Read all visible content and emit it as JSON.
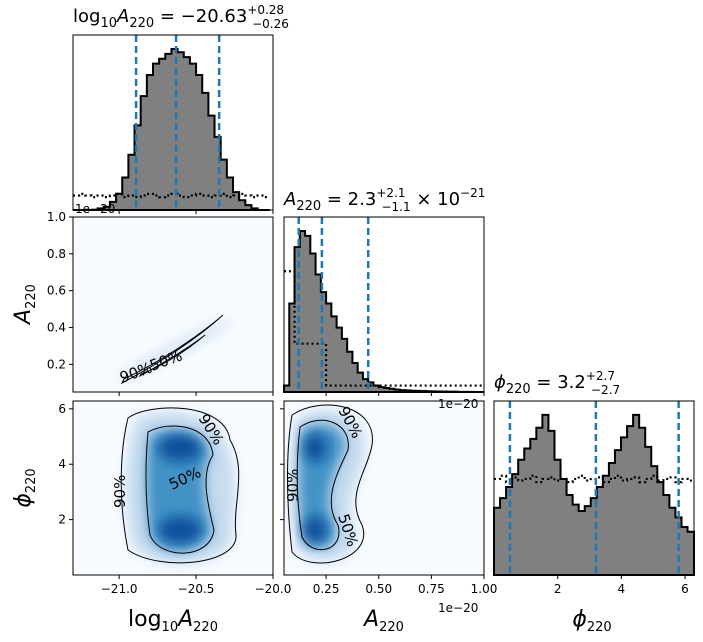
{
  "chart_data": {
    "type": "corner",
    "parameters": [
      {
        "id": "logA",
        "title": {
          "main": "log",
          "sub1": "10",
          "italic": "A",
          "sub2": "220",
          "eq": " = −20.63",
          "plus": "+0.28",
          "minus": "−0.26"
        },
        "axis_label": {
          "main": "log",
          "sub1": "10",
          "italic": "A",
          "sub2": "220"
        },
        "range": [
          -21.3,
          -20.0
        ],
        "ticks": [
          -21.0,
          -20.5,
          -20.0
        ],
        "tick_labels": [
          "−21.0",
          "−20.5",
          "−20.0"
        ],
        "quantiles": [
          -20.89,
          -20.63,
          -20.35
        ],
        "hist_bins": [
          -21.3,
          -21.26,
          -21.22,
          -21.18,
          -21.14,
          -21.1,
          -21.06,
          -21.02,
          -20.98,
          -20.94,
          -20.9,
          -20.86,
          -20.82,
          -20.78,
          -20.74,
          -20.7,
          -20.66,
          -20.62,
          -20.58,
          -20.54,
          -20.5,
          -20.46,
          -20.42,
          -20.38,
          -20.34,
          -20.3,
          -20.26,
          -20.22,
          -20.18,
          -20.14,
          -20.1,
          -20.06,
          -20.02
        ],
        "hist_values": [
          0.0,
          0.0,
          0.0,
          0.0,
          0.01,
          0.02,
          0.05,
          0.1,
          0.2,
          0.34,
          0.52,
          0.7,
          0.83,
          0.9,
          0.93,
          0.96,
          0.99,
          0.97,
          0.94,
          0.9,
          0.83,
          0.72,
          0.58,
          0.45,
          0.31,
          0.2,
          0.11,
          0.06,
          0.03,
          0.01,
          0.0,
          0.0
        ],
        "prior_values": [
          0.09,
          0.1,
          0.09,
          0.08,
          0.09,
          0.08,
          0.09,
          0.1,
          0.08,
          0.09,
          0.08,
          0.09,
          0.1,
          0.09,
          0.08,
          0.09,
          0.1,
          0.09,
          0.08,
          0.09,
          0.1,
          0.09,
          0.08,
          0.09,
          0.1,
          0.08,
          0.09,
          0.1,
          0.09,
          0.08,
          0.09,
          0.08
        ]
      },
      {
        "id": "A",
        "title": {
          "italic": "A",
          "sub2": "220",
          "eq": " = 2.3",
          "plus": "+2.1",
          "minus": "−1.1",
          "tail": " × 10",
          "exp": "−21"
        },
        "axis_label": {
          "italic": "A",
          "sub2": "220"
        },
        "range": [
          0.05,
          1.0
        ],
        "ticks": [
          0.25,
          0.5,
          0.75,
          1.0
        ],
        "tick_labels": [
          "0.25",
          "0.50",
          "0.75",
          "1.00"
        ],
        "yticks": [
          0.2,
          0.4,
          0.6,
          0.8,
          1.0
        ],
        "ytick_labels": [
          "0.2",
          "0.4",
          "0.6",
          "0.8",
          "1.0"
        ],
        "offset_text": "1e−20",
        "quantiles": [
          0.12,
          0.23,
          0.45
        ],
        "hist_bins": [
          0.05,
          0.075,
          0.1,
          0.125,
          0.15,
          0.175,
          0.2,
          0.225,
          0.25,
          0.275,
          0.3,
          0.325,
          0.35,
          0.375,
          0.4,
          0.425,
          0.45,
          0.475,
          0.5,
          0.525,
          0.55,
          0.575,
          0.6,
          0.625,
          0.65,
          0.675,
          0.7,
          0.725,
          0.75,
          0.775,
          0.8,
          0.825,
          0.85,
          0.875,
          0.9,
          0.925,
          0.95,
          0.975,
          1.0
        ],
        "hist_values": [
          0.04,
          0.55,
          0.9,
          1.0,
          0.97,
          0.86,
          0.73,
          0.62,
          0.55,
          0.47,
          0.4,
          0.33,
          0.25,
          0.18,
          0.12,
          0.08,
          0.06,
          0.04,
          0.03,
          0.025,
          0.02,
          0.015,
          0.012,
          0.01,
          0.008,
          0.007,
          0.006,
          0.005,
          0.004,
          0.003,
          0.003,
          0.002,
          0.002,
          0.001,
          0.001,
          0.001,
          0.0,
          0.0
        ],
        "prior_values": [
          0.75,
          0.75,
          0.3,
          0.3,
          0.3,
          0.3,
          0.3,
          0.3,
          0.04,
          0.04,
          0.04,
          0.04,
          0.04,
          0.04,
          0.04,
          0.04,
          0.04,
          0.04,
          0.04,
          0.04,
          0.04,
          0.04,
          0.04,
          0.04,
          0.04,
          0.04,
          0.04,
          0.04,
          0.04,
          0.04,
          0.04,
          0.04,
          0.04,
          0.04,
          0.04,
          0.04,
          0.04,
          0.04
        ]
      },
      {
        "id": "phi",
        "title": {
          "italic": "ϕ",
          "sub2": "220",
          "eq": " = 3.2",
          "plus": "+2.7",
          "minus": "−2.7"
        },
        "axis_label": {
          "italic": "ϕ",
          "sub2": "220"
        },
        "range": [
          0.0,
          6.283
        ],
        "ticks": [
          2,
          4,
          6
        ],
        "tick_labels": [
          "2",
          "4",
          "6"
        ],
        "yticks": [
          2,
          4,
          6
        ],
        "ytick_labels": [
          "2",
          "4",
          "6"
        ],
        "quantiles": [
          0.5,
          3.2,
          5.8
        ],
        "hist_bins": [
          0.0,
          0.19,
          0.38,
          0.57,
          0.76,
          0.95,
          1.14,
          1.33,
          1.52,
          1.71,
          1.9,
          2.09,
          2.28,
          2.47,
          2.66,
          2.85,
          3.04,
          3.23,
          3.42,
          3.61,
          3.8,
          3.99,
          4.18,
          4.37,
          4.56,
          4.75,
          4.94,
          5.13,
          5.32,
          5.51,
          5.7,
          5.89,
          6.08,
          6.283
        ],
        "hist_values": [
          0.42,
          0.48,
          0.55,
          0.63,
          0.72,
          0.79,
          0.85,
          0.92,
          1.0,
          0.9,
          0.72,
          0.6,
          0.5,
          0.44,
          0.4,
          0.43,
          0.48,
          0.55,
          0.62,
          0.7,
          0.78,
          0.86,
          0.93,
          1.0,
          0.92,
          0.8,
          0.68,
          0.58,
          0.5,
          0.42,
          0.36,
          0.3,
          0.27
        ],
        "prior_values": [
          0.6,
          0.62,
          0.58,
          0.61,
          0.59,
          0.6,
          0.62,
          0.58,
          0.6,
          0.61,
          0.59,
          0.6,
          0.58,
          0.6,
          0.62,
          0.59,
          0.6,
          0.61,
          0.58,
          0.6,
          0.62,
          0.59,
          0.6,
          0.61,
          0.58,
          0.6,
          0.62,
          0.59,
          0.6,
          0.61,
          0.58,
          0.6,
          0.59
        ]
      }
    ],
    "offset_text_logA": "1e−20",
    "contour_levels": [
      "50%",
      "90%"
    ],
    "colors": {
      "hist_fill": "#808080",
      "hist_edge": "#000000",
      "quantile_line": "#1f77b4",
      "density": "#08519c"
    }
  }
}
